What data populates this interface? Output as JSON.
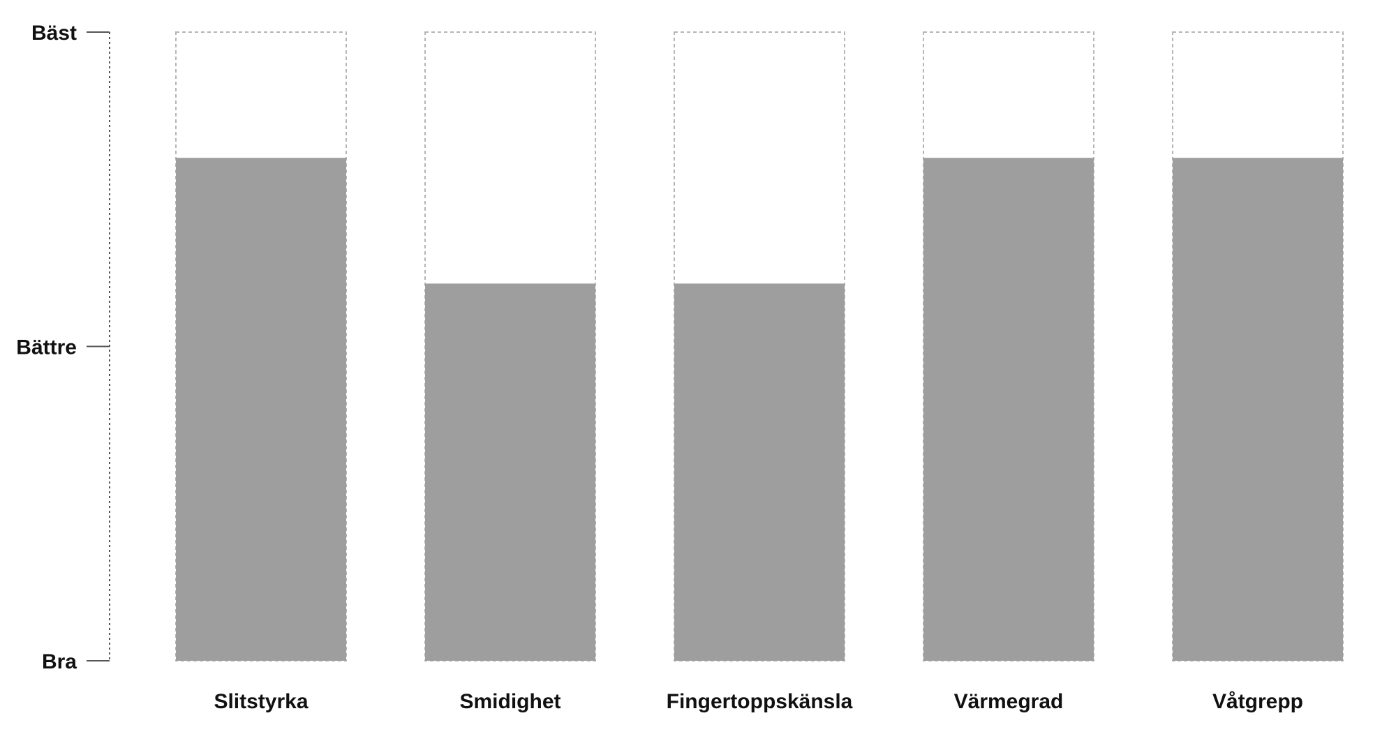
{
  "chart_data": {
    "type": "bar",
    "title": "",
    "xlabel": "",
    "ylabel": "",
    "categories": [
      "Slitstyrka",
      "Smidighet",
      "Fingertoppskänsla",
      "Värmegrad",
      "Våtgrepp"
    ],
    "values": [
      0.8,
      0.6,
      0.6,
      0.8,
      0.8
    ],
    "max": 1,
    "ylim": [
      0,
      1
    ],
    "y_ticks": [
      {
        "label": "Bra",
        "value": 0
      },
      {
        "label": "Bättre",
        "value": 0.5
      },
      {
        "label": "Bäst",
        "value": 1
      }
    ],
    "grid": false,
    "legend": "none"
  },
  "colors": {
    "bar_fill": "#9e9e9e",
    "max_outline": "#b5b5b5",
    "axis": "#555555",
    "text": "#111111"
  }
}
